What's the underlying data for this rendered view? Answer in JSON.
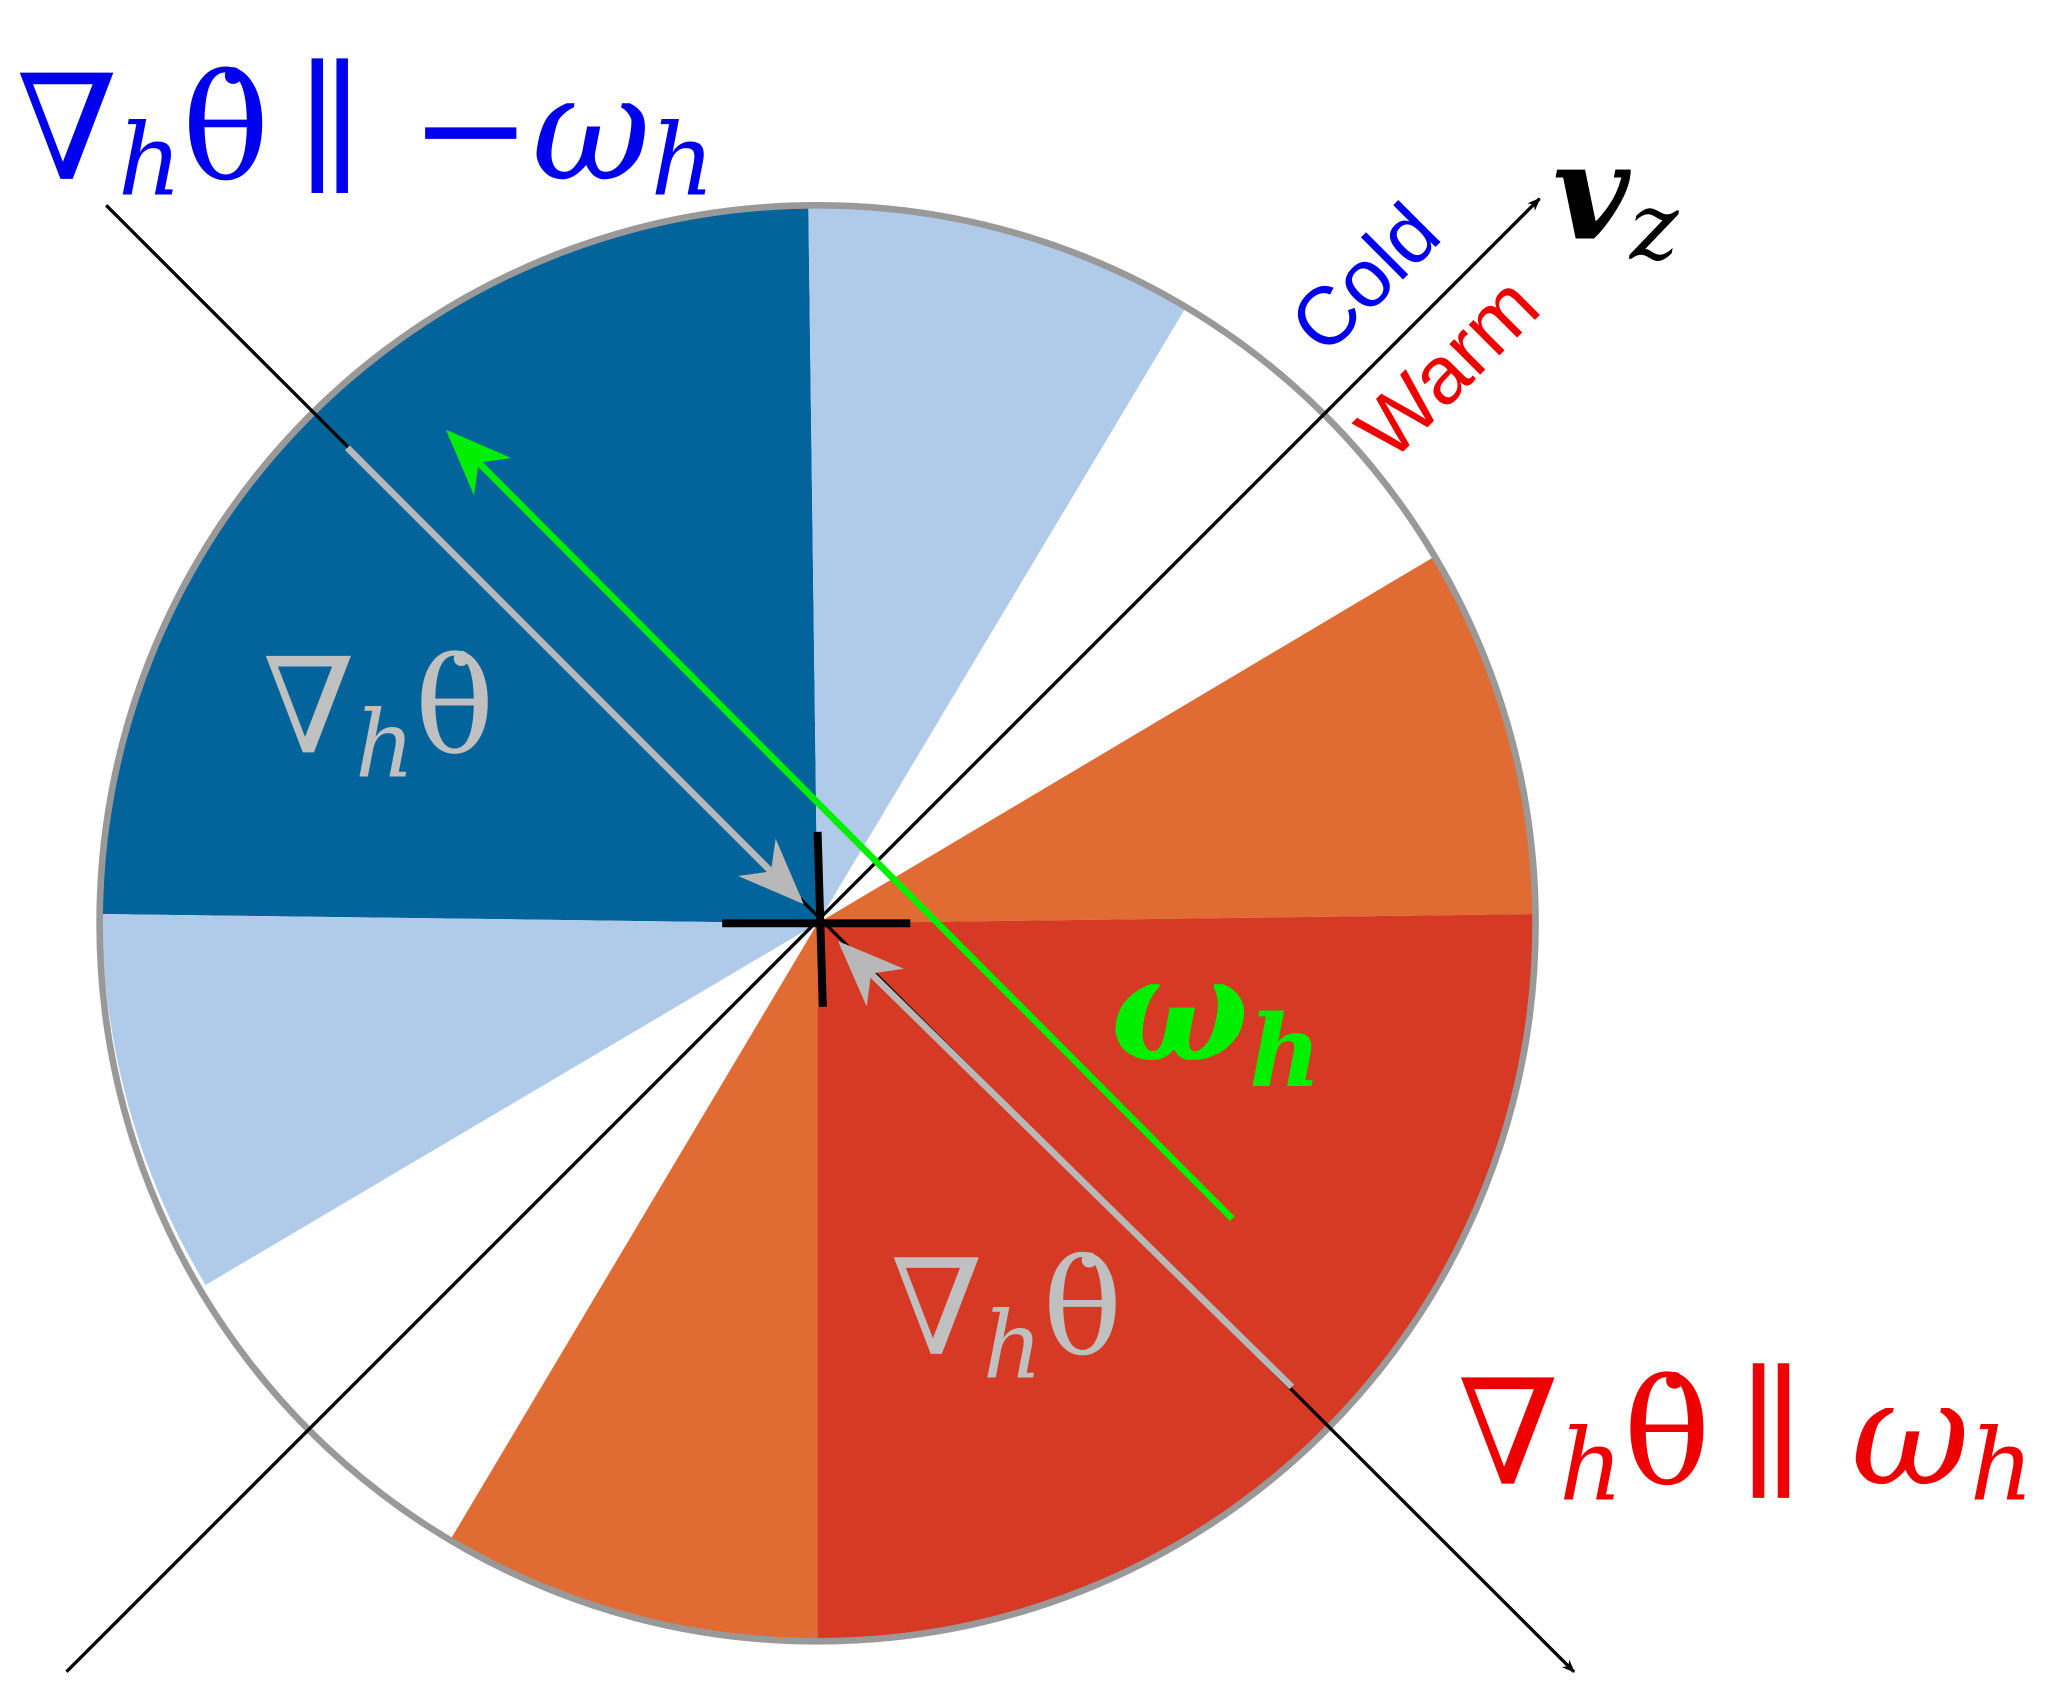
{
  "labels": {
    "top_left": {
      "nabla": "∇",
      "sub": "h",
      "theta": "θ̇",
      "rest": "∥ −ω",
      "sub2": "h"
    },
    "bottom_right": {
      "nabla": "∇",
      "sub": "h",
      "theta": "θ̇",
      "rest": "∥ ω",
      "sub2": "h"
    },
    "vz": {
      "main": "v",
      "sub": "z"
    },
    "cold": "Cold",
    "warm": "Warm",
    "omega": {
      "main": "ω",
      "sub": "h"
    },
    "inner_upper": {
      "nabla": "∇",
      "sub": "h",
      "theta": "θ̇"
    },
    "inner_lower": {
      "nabla": "∇",
      "sub": "h",
      "theta": "θ̇"
    }
  }
}
